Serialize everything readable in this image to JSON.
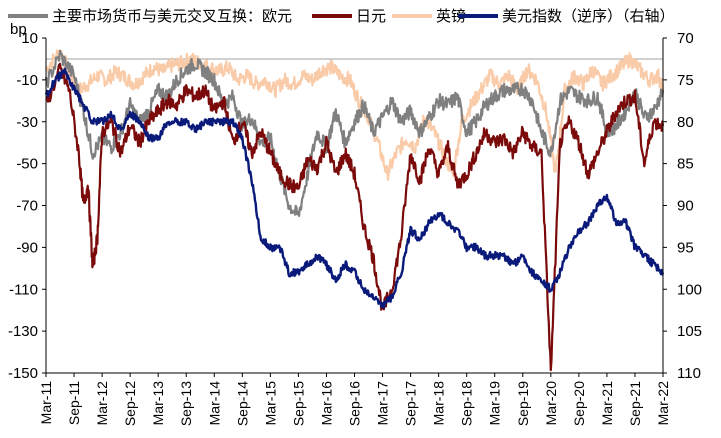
{
  "chart_data": {
    "type": "line",
    "unit_label": "bp",
    "y_left": {
      "min": -150,
      "max": 10,
      "ticks": [
        10,
        -10,
        -30,
        -50,
        -70,
        -90,
        -110,
        -130,
        -150
      ],
      "inverted": true
    },
    "y_right": {
      "min": 70,
      "max": 110,
      "ticks": [
        70,
        75,
        80,
        85,
        90,
        95,
        100,
        105,
        110
      ],
      "inverted": true
    },
    "x_tick_labels": [
      "Mar-11",
      "Sep-11",
      "Mar-12",
      "Sep-12",
      "Mar-13",
      "Sep-13",
      "Mar-14",
      "Sep-14",
      "Mar-15",
      "Sep-15",
      "Mar-16",
      "Sep-16",
      "Mar-17",
      "Sep-17",
      "Mar-18",
      "Sep-18",
      "Mar-19",
      "Sep-19",
      "Mar-20",
      "Sep-20",
      "Mar-21",
      "Sep-21",
      "Mar-22"
    ],
    "legend_prefix": "主要市场货币与美元交叉互换：",
    "series": [
      {
        "name": "欧元",
        "axis": "left",
        "color": "#808080",
        "points": [
          [
            0,
            -12
          ],
          [
            3,
            2
          ],
          [
            6,
            -8
          ],
          [
            8,
            -25
          ],
          [
            10,
            -45
          ],
          [
            12,
            -38
          ],
          [
            14,
            -42
          ],
          [
            16,
            -35
          ],
          [
            18,
            -22
          ],
          [
            20,
            -30
          ],
          [
            22,
            -25
          ],
          [
            24,
            -15
          ],
          [
            26,
            -18
          ],
          [
            28,
            -10
          ],
          [
            30,
            -5
          ],
          [
            32,
            -2
          ],
          [
            34,
            -6
          ],
          [
            36,
            -10
          ],
          [
            38,
            -22
          ],
          [
            40,
            -18
          ],
          [
            42,
            -32
          ],
          [
            44,
            -28
          ],
          [
            46,
            -40
          ],
          [
            48,
            -38
          ],
          [
            50,
            -55
          ],
          [
            52,
            -70
          ],
          [
            54,
            -75
          ],
          [
            56,
            -55
          ],
          [
            58,
            -35
          ],
          [
            60,
            -42
          ],
          [
            62,
            -25
          ],
          [
            64,
            -40
          ],
          [
            66,
            -30
          ],
          [
            68,
            -22
          ],
          [
            70,
            -35
          ],
          [
            72,
            -28
          ],
          [
            74,
            -20
          ],
          [
            76,
            -30
          ],
          [
            78,
            -25
          ],
          [
            80,
            -35
          ],
          [
            82,
            -28
          ],
          [
            84,
            -20
          ],
          [
            86,
            -22
          ],
          [
            88,
            -18
          ],
          [
            90,
            -35
          ],
          [
            92,
            -30
          ],
          [
            94,
            -22
          ],
          [
            96,
            -18
          ],
          [
            98,
            -15
          ],
          [
            100,
            -15
          ],
          [
            102,
            -14
          ],
          [
            104,
            -20
          ],
          [
            106,
            -35
          ],
          [
            108,
            -45
          ],
          [
            110,
            -20
          ],
          [
            112,
            -15
          ],
          [
            114,
            -18
          ],
          [
            116,
            -20
          ],
          [
            118,
            -18
          ],
          [
            120,
            -35
          ],
          [
            122,
            -32
          ],
          [
            124,
            -25
          ],
          [
            126,
            -15
          ],
          [
            128,
            -28
          ],
          [
            130,
            -25
          ],
          [
            132,
            -15
          ]
        ]
      },
      {
        "name": "日元",
        "axis": "left",
        "color": "#7b0a0a",
        "points": [
          [
            0,
            -22
          ],
          [
            3,
            -5
          ],
          [
            5,
            -15
          ],
          [
            7,
            -45
          ],
          [
            8,
            -70
          ],
          [
            9,
            -60
          ],
          [
            10,
            -100
          ],
          [
            11,
            -85
          ],
          [
            12,
            -35
          ],
          [
            14,
            -30
          ],
          [
            16,
            -45
          ],
          [
            18,
            -32
          ],
          [
            20,
            -40
          ],
          [
            22,
            -30
          ],
          [
            24,
            -25
          ],
          [
            26,
            -20
          ],
          [
            28,
            -22
          ],
          [
            30,
            -15
          ],
          [
            32,
            -18
          ],
          [
            34,
            -15
          ],
          [
            36,
            -25
          ],
          [
            38,
            -20
          ],
          [
            40,
            -40
          ],
          [
            42,
            -30
          ],
          [
            44,
            -45
          ],
          [
            46,
            -35
          ],
          [
            48,
            -45
          ],
          [
            50,
            -55
          ],
          [
            52,
            -60
          ],
          [
            54,
            -62
          ],
          [
            56,
            -48
          ],
          [
            58,
            -52
          ],
          [
            60,
            -40
          ],
          [
            62,
            -55
          ],
          [
            64,
            -45
          ],
          [
            66,
            -55
          ],
          [
            68,
            -80
          ],
          [
            70,
            -95
          ],
          [
            72,
            -120
          ],
          [
            74,
            -110
          ],
          [
            76,
            -85
          ],
          [
            78,
            -45
          ],
          [
            80,
            -58
          ],
          [
            82,
            -42
          ],
          [
            84,
            -55
          ],
          [
            86,
            -42
          ],
          [
            88,
            -60
          ],
          [
            90,
            -55
          ],
          [
            92,
            -45
          ],
          [
            94,
            -35
          ],
          [
            96,
            -40
          ],
          [
            98,
            -38
          ],
          [
            100,
            -45
          ],
          [
            102,
            -35
          ],
          [
            104,
            -42
          ],
          [
            106,
            -45
          ],
          [
            108,
            -150
          ],
          [
            110,
            -40
          ],
          [
            112,
            -30
          ],
          [
            114,
            -40
          ],
          [
            116,
            -55
          ],
          [
            118,
            -45
          ],
          [
            120,
            -35
          ],
          [
            122,
            -25
          ],
          [
            124,
            -20
          ],
          [
            126,
            -18
          ],
          [
            128,
            -50
          ],
          [
            130,
            -30
          ],
          [
            132,
            -32
          ]
        ]
      },
      {
        "name": "英镑",
        "axis": "left",
        "color": "#f9cba8",
        "points": [
          [
            0,
            -5
          ],
          [
            3,
            4
          ],
          [
            5,
            -6
          ],
          [
            7,
            -15
          ],
          [
            9,
            -12
          ],
          [
            11,
            -8
          ],
          [
            13,
            -10
          ],
          [
            15,
            -6
          ],
          [
            17,
            -9
          ],
          [
            19,
            -12
          ],
          [
            21,
            -8
          ],
          [
            23,
            -4
          ],
          [
            25,
            -6
          ],
          [
            27,
            -3
          ],
          [
            29,
            -2
          ],
          [
            31,
            0
          ],
          [
            33,
            -2
          ],
          [
            35,
            -4
          ],
          [
            37,
            -6
          ],
          [
            39,
            -4
          ],
          [
            41,
            -10
          ],
          [
            43,
            -8
          ],
          [
            45,
            -12
          ],
          [
            47,
            -10
          ],
          [
            49,
            -15
          ],
          [
            51,
            -10
          ],
          [
            53,
            -12
          ],
          [
            55,
            -8
          ],
          [
            57,
            -10
          ],
          [
            59,
            -5
          ],
          [
            61,
            -4
          ],
          [
            63,
            -8
          ],
          [
            65,
            -10
          ],
          [
            67,
            -20
          ],
          [
            69,
            -28
          ],
          [
            71,
            -40
          ],
          [
            73,
            -55
          ],
          [
            75,
            -45
          ],
          [
            77,
            -38
          ],
          [
            79,
            -42
          ],
          [
            81,
            -28
          ],
          [
            83,
            -35
          ],
          [
            85,
            -45
          ],
          [
            87,
            -55
          ],
          [
            89,
            -30
          ],
          [
            91,
            -22
          ],
          [
            93,
            -15
          ],
          [
            95,
            -8
          ],
          [
            97,
            -12
          ],
          [
            99,
            -8
          ],
          [
            101,
            -15
          ],
          [
            103,
            -5
          ],
          [
            105,
            -10
          ],
          [
            107,
            -25
          ],
          [
            109,
            -55
          ],
          [
            111,
            -15
          ],
          [
            113,
            -8
          ],
          [
            115,
            -12
          ],
          [
            117,
            -5
          ],
          [
            119,
            -12
          ],
          [
            121,
            -8
          ],
          [
            123,
            -4
          ],
          [
            125,
            0
          ],
          [
            127,
            -5
          ],
          [
            129,
            -10
          ],
          [
            131,
            -8
          ],
          [
            132,
            -15
          ]
        ]
      },
      {
        "name": "美元指数（逆序）（右轴）",
        "axis": "right",
        "color": "#0a1a7a",
        "points": [
          [
            0,
            77
          ],
          [
            2,
            75
          ],
          [
            4,
            74
          ],
          [
            6,
            76
          ],
          [
            8,
            78
          ],
          [
            10,
            80
          ],
          [
            12,
            80
          ],
          [
            14,
            79
          ],
          [
            16,
            81
          ],
          [
            18,
            79
          ],
          [
            20,
            80
          ],
          [
            22,
            82
          ],
          [
            24,
            82
          ],
          [
            26,
            80
          ],
          [
            28,
            80
          ],
          [
            30,
            80
          ],
          [
            32,
            81
          ],
          [
            34,
            80
          ],
          [
            36,
            80
          ],
          [
            38,
            80
          ],
          [
            40,
            80
          ],
          [
            42,
            82
          ],
          [
            44,
            87
          ],
          [
            46,
            94
          ],
          [
            48,
            95
          ],
          [
            50,
            95
          ],
          [
            52,
            98
          ],
          [
            54,
            98
          ],
          [
            56,
            97
          ],
          [
            58,
            96
          ],
          [
            60,
            97
          ],
          [
            62,
            99
          ],
          [
            64,
            97
          ],
          [
            66,
            98
          ],
          [
            68,
            100
          ],
          [
            70,
            101
          ],
          [
            72,
            102
          ],
          [
            74,
            101
          ],
          [
            76,
            98
          ],
          [
            78,
            93
          ],
          [
            80,
            94
          ],
          [
            82,
            92
          ],
          [
            84,
            91
          ],
          [
            86,
            92
          ],
          [
            88,
            93
          ],
          [
            90,
            95
          ],
          [
            92,
            95
          ],
          [
            94,
            96
          ],
          [
            96,
            96
          ],
          [
            98,
            96
          ],
          [
            100,
            97
          ],
          [
            102,
            96
          ],
          [
            104,
            98
          ],
          [
            106,
            99
          ],
          [
            108,
            100
          ],
          [
            110,
            98
          ],
          [
            112,
            95
          ],
          [
            114,
            93
          ],
          [
            116,
            92
          ],
          [
            118,
            90
          ],
          [
            120,
            89
          ],
          [
            122,
            92
          ],
          [
            124,
            92
          ],
          [
            126,
            95
          ],
          [
            128,
            96
          ],
          [
            130,
            97
          ],
          [
            132,
            98
          ]
        ]
      }
    ]
  }
}
